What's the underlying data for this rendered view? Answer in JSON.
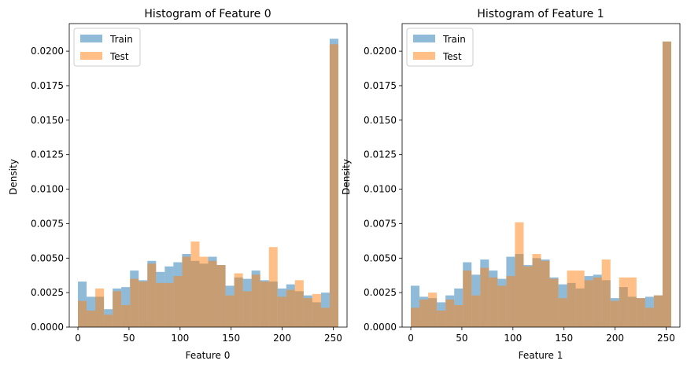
{
  "colors": {
    "train": "#1f77b4",
    "test": "#ff7f0e",
    "train_alpha": 0.5,
    "test_alpha": 0.5
  },
  "chart_data": [
    {
      "type": "histogram",
      "title": "Histogram of Feature 0",
      "xlabel": "Feature 0",
      "ylabel": "Density",
      "xlim": [
        -8.5,
        263.5
      ],
      "ylim": [
        0,
        0.022
      ],
      "xticks": [
        0,
        50,
        100,
        150,
        200,
        250
      ],
      "yticks": [
        "0.0000",
        "0.0025",
        "0.0050",
        "0.0075",
        "0.0100",
        "0.0125",
        "0.0150",
        "0.0175",
        "0.0200"
      ],
      "legend": {
        "location": "upper left",
        "entries": [
          "Train",
          "Test"
        ]
      },
      "bin_edges": [
        0.0,
        8.5,
        17.0,
        25.5,
        34.0,
        42.5,
        51.0,
        59.5,
        68.0,
        76.5,
        85.0,
        93.5,
        102.0,
        110.5,
        119.0,
        127.5,
        136.0,
        144.5,
        153.0,
        161.5,
        170.0,
        178.5,
        187.0,
        195.5,
        204.0,
        212.5,
        221.0,
        229.5,
        238.0,
        246.5,
        255.0
      ],
      "series": [
        {
          "name": "Train",
          "values": [
            0.0033,
            0.0022,
            0.0022,
            0.0013,
            0.0028,
            0.0029,
            0.0041,
            0.0034,
            0.0048,
            0.004,
            0.0044,
            0.0047,
            0.0053,
            0.0048,
            0.0046,
            0.0051,
            0.0045,
            0.003,
            0.0036,
            0.0035,
            0.0041,
            0.0034,
            0.0033,
            0.0028,
            0.0031,
            0.0026,
            0.0023,
            0.0018,
            0.0025,
            0.0209
          ]
        },
        {
          "name": "Test",
          "values": [
            0.0019,
            0.0012,
            0.0028,
            0.0009,
            0.0026,
            0.0016,
            0.0035,
            0.0033,
            0.0046,
            0.0032,
            0.0032,
            0.0037,
            0.0051,
            0.0062,
            0.0051,
            0.0048,
            0.0045,
            0.0023,
            0.0039,
            0.0026,
            0.0038,
            0.0033,
            0.0058,
            0.0022,
            0.0027,
            0.0034,
            0.0021,
            0.0024,
            0.0014,
            0.0205
          ]
        }
      ]
    },
    {
      "type": "histogram",
      "title": "Histogram of Feature 1",
      "xlabel": "Feature 1",
      "ylabel": "Density",
      "xlim": [
        -8.5,
        263.5
      ],
      "ylim": [
        0,
        0.022
      ],
      "xticks": [
        0,
        50,
        100,
        150,
        200,
        250
      ],
      "yticks": [
        "0.0000",
        "0.0025",
        "0.0050",
        "0.0075",
        "0.0100",
        "0.0125",
        "0.0150",
        "0.0175",
        "0.0200"
      ],
      "legend": {
        "location": "upper left",
        "entries": [
          "Train",
          "Test"
        ]
      },
      "bin_edges": [
        0.0,
        8.5,
        17.0,
        25.5,
        34.0,
        42.5,
        51.0,
        59.5,
        68.0,
        76.5,
        85.0,
        93.5,
        102.0,
        110.5,
        119.0,
        127.5,
        136.0,
        144.5,
        153.0,
        161.5,
        170.0,
        178.5,
        187.0,
        195.5,
        204.0,
        212.5,
        221.0,
        229.5,
        238.0,
        246.5,
        255.0
      ],
      "series": [
        {
          "name": "Train",
          "values": [
            0.003,
            0.0022,
            0.0021,
            0.0018,
            0.0023,
            0.0028,
            0.0047,
            0.0038,
            0.0049,
            0.0041,
            0.0035,
            0.0051,
            0.0053,
            0.0045,
            0.005,
            0.0049,
            0.0036,
            0.0031,
            0.0032,
            0.0028,
            0.0037,
            0.0038,
            0.0034,
            0.0021,
            0.0029,
            0.0022,
            0.0021,
            0.0022,
            0.0023,
            0.0207
          ]
        },
        {
          "name": "Test",
          "values": [
            0.0014,
            0.002,
            0.0025,
            0.0012,
            0.002,
            0.0016,
            0.0041,
            0.0023,
            0.0043,
            0.0036,
            0.003,
            0.0037,
            0.0076,
            0.0044,
            0.0053,
            0.0048,
            0.0035,
            0.0021,
            0.0041,
            0.0041,
            0.0034,
            0.0036,
            0.0049,
            0.0019,
            0.0036,
            0.0036,
            0.0021,
            0.0014,
            0.0023,
            0.0207
          ]
        }
      ]
    }
  ]
}
